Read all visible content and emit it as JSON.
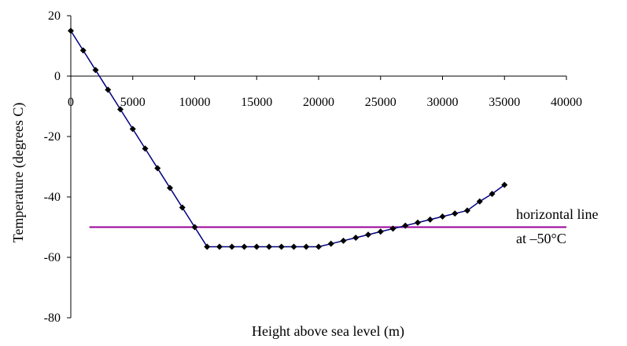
{
  "chart_data": {
    "type": "line",
    "title": "",
    "xlabel": "Height above sea level (m)",
    "ylabel": "Temperature (degrees C)",
    "xlim": [
      0,
      40000
    ],
    "ylim": [
      -80,
      20
    ],
    "x_ticks": [
      "0",
      "5000",
      "10000",
      "15000",
      "20000",
      "25000",
      "30000",
      "35000",
      "40000"
    ],
    "y_ticks": [
      "20",
      "0",
      "-20",
      "-40",
      "-60",
      "-80"
    ],
    "grid": false,
    "legend": "none",
    "colors": {
      "line": "#000080",
      "marker": "#000000",
      "reference": "#990099"
    },
    "series": [
      {
        "x": [
          0,
          1000,
          2000,
          3000,
          4000,
          5000,
          6000,
          7000,
          8000,
          9000,
          10000,
          11000,
          12000,
          13000,
          14000,
          15000,
          16000,
          17000,
          18000,
          19000,
          20000,
          21000,
          22000,
          23000,
          24000,
          25000,
          26000,
          27000,
          28000,
          29000,
          30000,
          31000,
          32000,
          33000,
          34000,
          35000
        ],
        "values": [
          15,
          8.5,
          2,
          -4.5,
          -11,
          -17.5,
          -24,
          -30.5,
          -37,
          -43.5,
          -50,
          -56.5,
          -56.5,
          -56.5,
          -56.5,
          -56.5,
          -56.5,
          -56.5,
          -56.5,
          -56.5,
          -56.5,
          -55.5,
          -54.5,
          -53.5,
          -52.5,
          -51.5,
          -50.5,
          -49.5,
          -48.5,
          -47.5,
          -46.5,
          -45.5,
          -44.5,
          -41.5,
          -39,
          -36
        ]
      }
    ],
    "reference_line": {
      "y": -50,
      "x_range": [
        1500,
        40000
      ]
    },
    "annotation": {
      "line1": "horizontal line",
      "line2": "at –50°C"
    }
  }
}
